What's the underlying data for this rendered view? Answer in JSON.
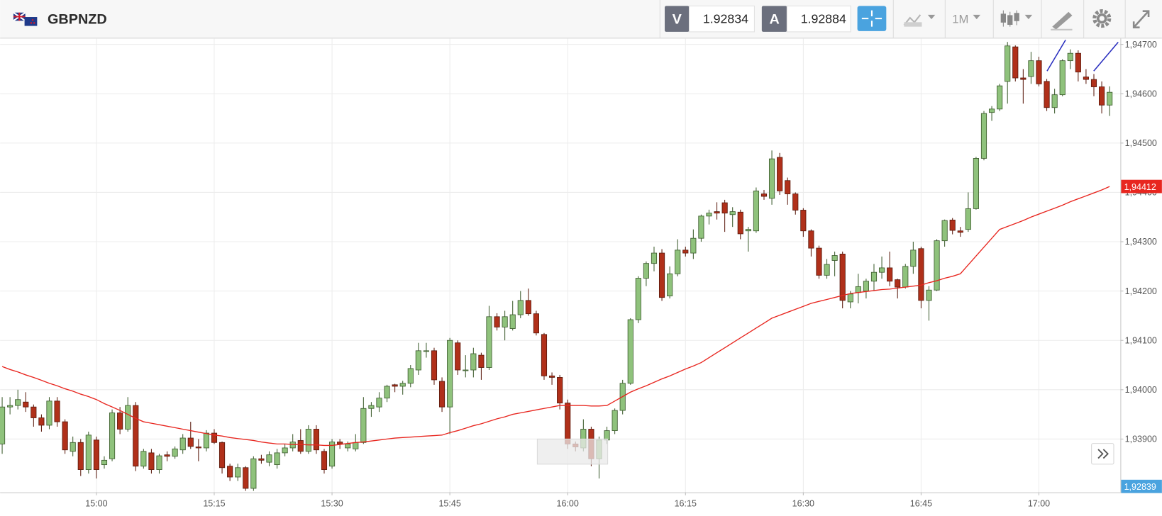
{
  "toolbar": {
    "symbol": "GBPNZD",
    "sell_label": "V",
    "sell_price": "1.92834",
    "buy_label": "A",
    "buy_price": "1.92884",
    "timeframe": "1M"
  },
  "chart_data": {
    "type": "candlestick",
    "categories": [
      null,
      null,
      null,
      null,
      null,
      null,
      null,
      null,
      null,
      null,
      null,
      null,
      "15:00",
      null,
      null,
      null,
      null,
      null,
      null,
      null,
      null,
      null,
      null,
      null,
      null,
      null,
      null,
      "15:15",
      null,
      null,
      null,
      null,
      null,
      null,
      null,
      null,
      null,
      null,
      null,
      null,
      null,
      null,
      "15:30",
      null,
      null,
      null,
      null,
      null,
      null,
      null,
      null,
      null,
      null,
      null,
      null,
      null,
      null,
      "15:45",
      null,
      null,
      null,
      null,
      null,
      null,
      null,
      null,
      null,
      null,
      null,
      null,
      null,
      null,
      "16:00",
      null,
      null,
      null,
      null,
      null,
      null,
      null,
      null,
      null,
      null,
      null,
      null,
      null,
      null,
      "16:15",
      null,
      null,
      null,
      null,
      null,
      null,
      null,
      null,
      null,
      null,
      null,
      null,
      null,
      null,
      "16:30",
      null,
      null,
      null,
      null,
      null,
      null,
      null,
      null,
      null,
      null,
      null,
      null,
      null,
      null,
      "16:45",
      null,
      null,
      null,
      null,
      null,
      null,
      null,
      null,
      null,
      null,
      null,
      null,
      null,
      null,
      "17:00",
      null,
      null,
      null,
      null,
      null,
      null,
      null,
      null,
      null
    ],
    "open": [
      1.9389,
      1.93965,
      1.93968,
      1.93975,
      1.93965,
      1.93943,
      1.93928,
      1.93977,
      1.93935,
      1.93875,
      1.93893,
      1.93838,
      1.93898,
      1.93848,
      1.9386,
      1.93953,
      1.9392,
      1.93968,
      1.93845,
      1.93872,
      1.93838,
      1.93868,
      1.93865,
      1.93878,
      1.93902,
      1.93884,
      1.93882,
      1.93912,
      1.93893,
      1.93845,
      1.93823,
      1.93842,
      1.938,
      1.9386,
      1.93853,
      1.93848,
      1.93872,
      1.93882,
      1.93897,
      1.93875,
      1.9392,
      1.93875,
      1.93845,
      1.93894,
      1.93882,
      1.9388,
      1.93893,
      1.93962,
      1.93965,
      1.93983,
      1.9401,
      1.94007,
      1.94013,
      1.9404,
      1.94079,
      1.94079,
      1.94017,
      1.93965,
      1.94095,
      1.9404,
      1.9404,
      1.9407,
      1.94045,
      1.94148,
      1.94127,
      1.94124,
      1.94152,
      1.94181,
      1.94154,
      1.94112,
      1.94028,
      1.94025,
      1.93973,
      1.9389,
      1.93882,
      1.9392,
      1.9386,
      1.93898,
      1.93917,
      1.93958,
      1.94013,
      1.94142,
      1.94226,
      1.94256,
      1.94277,
      1.9419,
      1.94235,
      1.94283,
      1.94277,
      1.94307,
      1.94352,
      1.94361,
      1.94379,
      1.94355,
      1.9436,
      1.94322,
      1.94322,
      1.94397,
      1.94388,
      1.94471,
      1.94424,
      1.94397,
      1.94364,
      1.94322,
      1.94287,
      1.94232,
      1.94262,
      1.94275,
      1.94178,
      1.94197,
      1.942,
      1.9422,
      1.94238,
      1.94247,
      1.94223,
      1.94208,
      1.9425,
      1.94286,
      1.94181,
      1.94202,
      1.94302,
      1.94344,
      1.94322,
      1.94325,
      1.94367,
      1.94469,
      1.94562,
      1.94569,
      1.94625,
      1.94695,
      1.94632,
      1.94635,
      1.94667,
      1.94625,
      1.94572,
      1.94598,
      1.94667,
      1.94682,
      1.94634,
      1.94629,
      1.94614,
      1.94577
    ],
    "high": [
      1.93985,
      1.93985,
      1.94,
      1.93995,
      1.9397,
      1.9395,
      1.93985,
      1.93985,
      1.9394,
      1.93905,
      1.939,
      1.93915,
      1.93905,
      1.93865,
      1.9396,
      1.93965,
      1.93985,
      1.93975,
      1.9388,
      1.9388,
      1.9387,
      1.93875,
      1.93885,
      1.9391,
      1.93935,
      1.939,
      1.93918,
      1.9392,
      1.93895,
      1.9385,
      1.9385,
      1.93845,
      1.93865,
      1.93868,
      1.93875,
      1.9388,
      1.9389,
      1.9391,
      1.9392,
      1.93928,
      1.93928,
      1.9388,
      1.939,
      1.939,
      1.93895,
      1.9391,
      1.93985,
      1.93975,
      1.93995,
      1.9401,
      1.94012,
      1.94018,
      1.9405,
      1.94095,
      1.94095,
      1.94085,
      1.94025,
      1.94105,
      1.941,
      1.9407,
      1.94085,
      1.94075,
      1.9417,
      1.94155,
      1.9416,
      1.9418,
      1.942,
      1.94205,
      1.9416,
      1.94115,
      1.94035,
      1.9403,
      1.9398,
      1.93895,
      1.9394,
      1.93925,
      1.93905,
      1.93925,
      1.93962,
      1.9402,
      1.94145,
      1.9423,
      1.9426,
      1.9429,
      1.94285,
      1.9425,
      1.94305,
      1.9429,
      1.94325,
      1.94355,
      1.94365,
      1.9438,
      1.94385,
      1.9437,
      1.94365,
      1.9433,
      1.9441,
      1.94405,
      1.94485,
      1.9448,
      1.9443,
      1.944,
      1.94368,
      1.94325,
      1.94292,
      1.94265,
      1.9428,
      1.9428,
      1.942,
      1.94235,
      1.94225,
      1.94255,
      1.9427,
      1.9428,
      1.94225,
      1.94255,
      1.943,
      1.9429,
      1.9421,
      1.94305,
      1.94345,
      1.94348,
      1.9433,
      1.944,
      1.94472,
      1.94565,
      1.94575,
      1.9462,
      1.94705,
      1.94698,
      1.9465,
      1.94685,
      1.94675,
      1.9463,
      1.9461,
      1.9467,
      1.9469,
      1.94688,
      1.9465,
      1.9464,
      1.94625,
      1.94615
    ],
    "low": [
      1.9387,
      1.9395,
      1.9396,
      1.93955,
      1.93925,
      1.93915,
      1.9392,
      1.93925,
      1.9387,
      1.93865,
      1.93825,
      1.9383,
      1.9382,
      1.9384,
      1.93855,
      1.9391,
      1.93915,
      1.93835,
      1.9384,
      1.9383,
      1.9383,
      1.93855,
      1.9386,
      1.9387,
      1.9388,
      1.93855,
      1.93875,
      1.9389,
      1.9383,
      1.93815,
      1.93815,
      1.93795,
      1.93795,
      1.9385,
      1.93845,
      1.9384,
      1.93865,
      1.93875,
      1.9387,
      1.9387,
      1.9387,
      1.9383,
      1.9384,
      1.9388,
      1.93875,
      1.93875,
      1.9389,
      1.93945,
      1.93955,
      1.93975,
      1.93995,
      1.9399,
      1.94005,
      1.9403,
      1.94065,
      1.9401,
      1.93955,
      1.9391,
      1.9403,
      1.94025,
      1.94025,
      1.9402,
      1.9404,
      1.9412,
      1.941,
      1.9412,
      1.94145,
      1.9415,
      1.9411,
      1.9402,
      1.9401,
      1.9396,
      1.9388,
      1.93875,
      1.93875,
      1.93845,
      1.9382,
      1.9389,
      1.9391,
      1.9395,
      1.9401,
      1.94135,
      1.9421,
      1.9424,
      1.9418,
      1.94185,
      1.9423,
      1.9427,
      1.94265,
      1.943,
      1.94335,
      1.94345,
      1.9432,
      1.9433,
      1.94305,
      1.9428,
      1.94318,
      1.94385,
      1.94375,
      1.94395,
      1.94375,
      1.94355,
      1.9431,
      1.9427,
      1.94225,
      1.94225,
      1.9423,
      1.94165,
      1.94165,
      1.94175,
      1.94185,
      1.942,
      1.94225,
      1.9421,
      1.94185,
      1.94205,
      1.94235,
      1.94165,
      1.9414,
      1.942,
      1.9429,
      1.94315,
      1.9431,
      1.9432,
      1.94365,
      1.94465,
      1.94545,
      1.94565,
      1.9458,
      1.94625,
      1.9458,
      1.9462,
      1.94615,
      1.94565,
      1.9456,
      1.94595,
      1.9465,
      1.94625,
      1.9462,
      1.94595,
      1.9456,
      1.94555
    ],
    "close": [
      1.93965,
      1.93968,
      1.9398,
      1.93965,
      1.93943,
      1.93928,
      1.93977,
      1.93935,
      1.93878,
      1.93893,
      1.93838,
      1.93908,
      1.93838,
      1.93857,
      1.93953,
      1.9392,
      1.93968,
      1.93845,
      1.93875,
      1.93838,
      1.93866,
      1.93865,
      1.9388,
      1.93902,
      1.93885,
      1.93882,
      1.93912,
      1.93893,
      1.93842,
      1.93823,
      1.93842,
      1.938,
      1.9386,
      1.93857,
      1.93868,
      1.93872,
      1.93882,
      1.93894,
      1.93875,
      1.9392,
      1.93878,
      1.93838,
      1.93894,
      1.9389,
      1.9389,
      1.93893,
      1.93962,
      1.93968,
      1.93983,
      1.94007,
      1.94007,
      1.94013,
      1.94043,
      1.94079,
      1.94079,
      1.9402,
      1.93965,
      1.941,
      1.9404,
      1.9404,
      1.94073,
      1.94045,
      1.94148,
      1.94127,
      1.94148,
      1.94152,
      1.94181,
      1.94154,
      1.94115,
      1.94028,
      1.94025,
      1.93973,
      1.9389,
      1.93884,
      1.9392,
      1.9386,
      1.93898,
      1.93917,
      1.93958,
      1.94013,
      1.94142,
      1.94226,
      1.94256,
      1.94277,
      1.94187,
      1.94235,
      1.94283,
      1.94277,
      1.94307,
      1.94352,
      1.94358,
      1.94358,
      1.94358,
      1.94361,
      1.94316,
      1.94325,
      1.94403,
      1.94392,
      1.94468,
      1.94403,
      1.94397,
      1.94364,
      1.94322,
      1.94287,
      1.94232,
      1.94254,
      1.94272,
      1.94181,
      1.94194,
      1.94209,
      1.9422,
      1.94238,
      1.94247,
      1.9422,
      1.94208,
      1.9425,
      1.94283,
      1.94181,
      1.94202,
      1.94302,
      1.94343,
      1.94323,
      1.94319,
      1.94367,
      1.94469,
      1.9456,
      1.94569,
      1.94616,
      1.94697,
      1.94632,
      1.94629,
      1.94667,
      1.9462,
      1.94572,
      1.94598,
      1.94667,
      1.94682,
      1.94644,
      1.94629,
      1.94614,
      1.94577,
      1.94603
    ],
    "up_color": "#8fc27c",
    "up_border": "#3d5c2e",
    "down_color": "#b0301a",
    "down_border": "#5a1a0d",
    "moving_average": {
      "color": "#e8261f",
      "values": [
        1.94047,
        1.94041,
        1.94036,
        1.9403,
        1.94025,
        1.94019,
        1.94013,
        1.94008,
        1.94002,
        1.93997,
        1.93991,
        1.93986,
        1.9398,
        1.93972,
        1.93965,
        1.93958,
        1.9395,
        1.93942,
        1.93935,
        1.93932,
        1.93929,
        1.93926,
        1.93923,
        1.9392,
        1.93917,
        1.93914,
        1.93911,
        1.93908,
        1.93906,
        1.93903,
        1.93901,
        1.93899,
        1.93897,
        1.93894,
        1.93892,
        1.9389,
        1.9389,
        1.93889,
        1.93889,
        1.93888,
        1.93888,
        1.93887,
        1.93887,
        1.93889,
        1.93891,
        1.93893,
        1.93894,
        1.93896,
        1.93898,
        1.939,
        1.93902,
        1.93903,
        1.93904,
        1.93905,
        1.93906,
        1.93907,
        1.93908,
        1.93913,
        1.93917,
        1.93922,
        1.93927,
        1.93931,
        1.93936,
        1.93941,
        1.93945,
        1.9395,
        1.93953,
        1.93956,
        1.93959,
        1.93962,
        1.93965,
        1.93968,
        1.93968,
        1.93968,
        1.93968,
        1.93967,
        1.93967,
        1.93968,
        1.93977,
        1.93986,
        1.93995,
        1.94002,
        1.94008,
        1.94015,
        1.94022,
        1.94028,
        1.94035,
        1.94042,
        1.94048,
        1.94055,
        1.94065,
        1.94075,
        1.94085,
        1.94095,
        1.94105,
        1.94115,
        1.94125,
        1.94135,
        1.94145,
        1.94151,
        1.94157,
        1.94163,
        1.94169,
        1.94175,
        1.94179,
        1.94183,
        1.94187,
        1.94191,
        1.94195,
        1.94197,
        1.94199,
        1.94201,
        1.94203,
        1.94204,
        1.94206,
        1.94208,
        1.9421,
        1.94212,
        1.94217,
        1.94221,
        1.94226,
        1.9423,
        1.94235,
        1.94253,
        1.94271,
        1.94289,
        1.94307,
        1.94325,
        1.94331,
        1.94337,
        1.94343,
        1.9435,
        1.94356,
        1.94362,
        1.94368,
        1.94374,
        1.94381,
        1.94387,
        1.94393,
        1.94399,
        1.94405,
        1.94412
      ],
      "last_label": "1,94412"
    },
    "current_price_label": "1,92839",
    "ylim": [
      1.93792,
      1.94712
    ],
    "yticks": [
      {
        "value": 1.939,
        "label": "1,93900"
      },
      {
        "value": 1.94,
        "label": "1,94000"
      },
      {
        "value": 1.941,
        "label": "1,94100"
      },
      {
        "value": 1.942,
        "label": "1,94200"
      },
      {
        "value": 1.943,
        "label": "1,94300"
      },
      {
        "value": 1.944,
        "label": "1,94400"
      },
      {
        "value": 1.945,
        "label": "1,94500"
      },
      {
        "value": 1.946,
        "label": "1,94600"
      },
      {
        "value": 1.947,
        "label": "1,94700"
      }
    ],
    "grid": true
  }
}
